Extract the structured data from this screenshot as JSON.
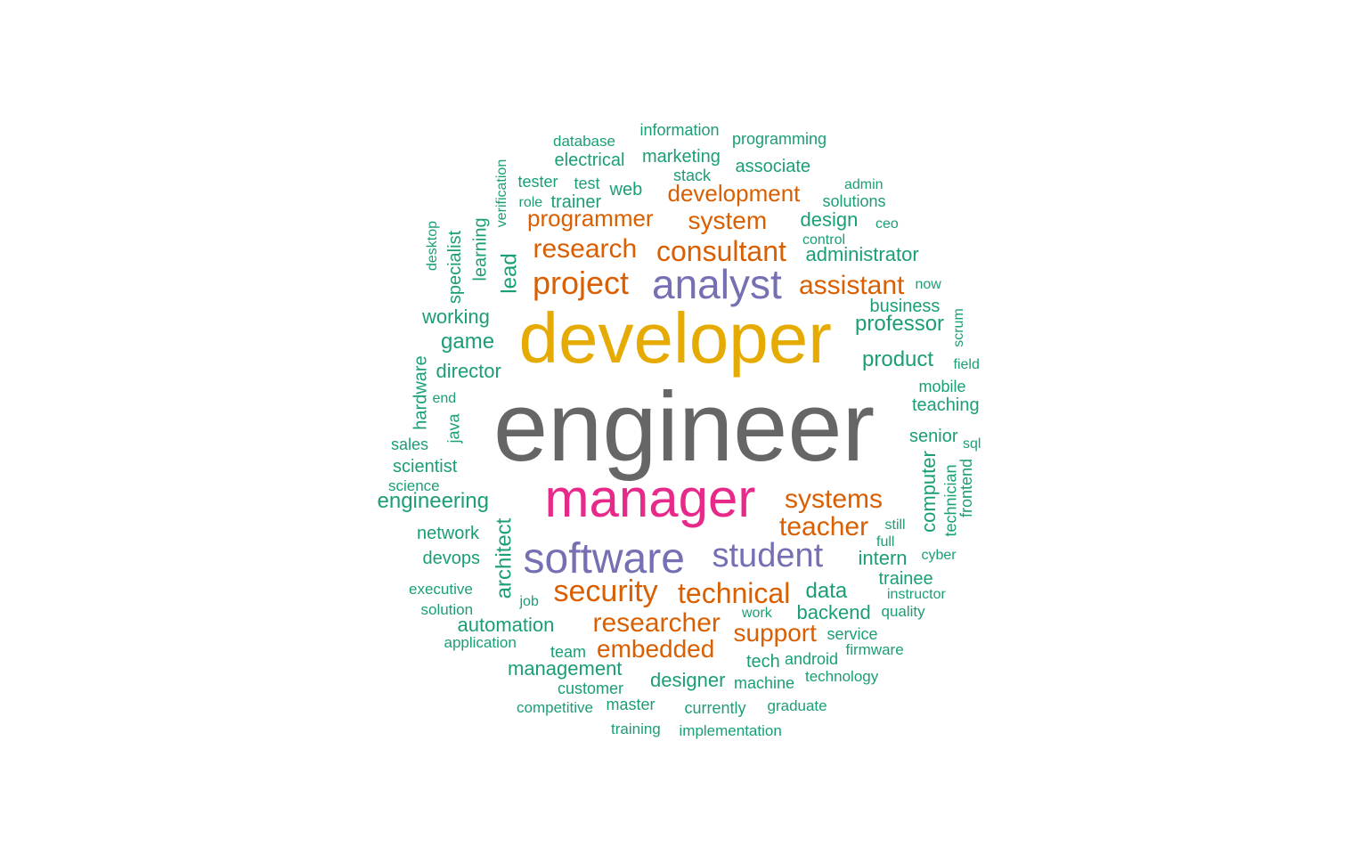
{
  "palette": {
    "c1": "#666666",
    "c2": "#e6ab02",
    "c3": "#e7298a",
    "c4": "#7570b3",
    "c5": "#d95f02",
    "c6": "#1b9e77"
  },
  "words": [
    {
      "text": "engineer",
      "color": "#666666",
      "rank": 1
    },
    {
      "text": "developer",
      "color": "#e6ab02",
      "rank": 2
    },
    {
      "text": "manager",
      "color": "#e7298a",
      "rank": 3
    },
    {
      "text": "software",
      "color": "#7570b3",
      "rank": 4
    },
    {
      "text": "analyst",
      "color": "#7570b3",
      "rank": 5
    },
    {
      "text": "student",
      "color": "#7570b3",
      "rank": 6
    },
    {
      "text": "project",
      "color": "#d95f02",
      "rank": 7
    },
    {
      "text": "security",
      "color": "#d95f02",
      "rank": 8
    },
    {
      "text": "technical",
      "color": "#d95f02",
      "rank": 9
    },
    {
      "text": "consultant",
      "color": "#d95f02",
      "rank": 10
    },
    {
      "text": "research",
      "color": "#d95f02",
      "rank": 11
    },
    {
      "text": "researcher",
      "color": "#d95f02",
      "rank": 12
    },
    {
      "text": "systems",
      "color": "#d95f02",
      "rank": 13
    },
    {
      "text": "teacher",
      "color": "#d95f02",
      "rank": 14
    },
    {
      "text": "assistant",
      "color": "#d95f02",
      "rank": 15
    },
    {
      "text": "embedded",
      "color": "#d95f02",
      "rank": 16
    },
    {
      "text": "support",
      "color": "#d95f02",
      "rank": 17
    },
    {
      "text": "system",
      "color": "#d95f02",
      "rank": 18
    },
    {
      "text": "programmer",
      "color": "#d95f02",
      "rank": 19
    },
    {
      "text": "development",
      "color": "#d95f02",
      "rank": 20
    },
    {
      "text": "engineering",
      "color": "#1b9e77",
      "rank": 21
    },
    {
      "text": "architect",
      "color": "#1b9e77",
      "rank": 22
    },
    {
      "text": "product",
      "color": "#1b9e77",
      "rank": 23
    },
    {
      "text": "professor",
      "color": "#1b9e77",
      "rank": 24
    },
    {
      "text": "lead",
      "color": "#1b9e77",
      "rank": 25
    },
    {
      "text": "data",
      "color": "#1b9e77",
      "rank": 26
    },
    {
      "text": "game",
      "color": "#1b9e77",
      "rank": 27
    },
    {
      "text": "intern",
      "color": "#1b9e77",
      "rank": 28
    },
    {
      "text": "backend",
      "color": "#1b9e77",
      "rank": 29
    },
    {
      "text": "automation",
      "color": "#1b9e77",
      "rank": 30
    },
    {
      "text": "management",
      "color": "#1b9e77",
      "rank": 31
    },
    {
      "text": "designer",
      "color": "#1b9e77",
      "rank": 32
    },
    {
      "text": "design",
      "color": "#1b9e77",
      "rank": 33
    },
    {
      "text": "administrator",
      "color": "#1b9e77",
      "rank": 34
    },
    {
      "text": "computer",
      "color": "#1b9e77",
      "rank": 35
    },
    {
      "text": "director",
      "color": "#1b9e77",
      "rank": 36
    },
    {
      "text": "working",
      "color": "#1b9e77",
      "rank": 37
    },
    {
      "text": "scientist",
      "color": "#1b9e77",
      "rank": 38
    },
    {
      "text": "network",
      "color": "#1b9e77",
      "rank": 39
    },
    {
      "text": "devops",
      "color": "#1b9e77",
      "rank": 40
    },
    {
      "text": "tech",
      "color": "#1b9e77",
      "rank": 41
    },
    {
      "text": "hardware",
      "color": "#1b9e77",
      "rank": 42
    },
    {
      "text": "web",
      "color": "#1b9e77",
      "rank": 43
    },
    {
      "text": "electrical",
      "color": "#1b9e77",
      "rank": 44
    },
    {
      "text": "trainer",
      "color": "#1b9e77",
      "rank": 45
    },
    {
      "text": "learning",
      "color": "#1b9e77",
      "rank": 46
    },
    {
      "text": "specialist",
      "color": "#1b9e77",
      "rank": 47
    },
    {
      "text": "senior",
      "color": "#1b9e77",
      "rank": 48
    },
    {
      "text": "teaching",
      "color": "#1b9e77",
      "rank": 49
    },
    {
      "text": "business",
      "color": "#1b9e77",
      "rank": 50
    },
    {
      "text": "trainee",
      "color": "#1b9e77",
      "rank": 51
    },
    {
      "text": "marketing",
      "color": "#1b9e77",
      "rank": 52
    },
    {
      "text": "associate",
      "color": "#1b9e77",
      "rank": 53
    },
    {
      "text": "tester",
      "color": "#1b9e77",
      "rank": 54
    },
    {
      "text": "solutions",
      "color": "#1b9e77",
      "rank": 55
    },
    {
      "text": "technician",
      "color": "#1b9e77",
      "rank": 56
    },
    {
      "text": "machine",
      "color": "#1b9e77",
      "rank": 57
    },
    {
      "text": "service",
      "color": "#1b9e77",
      "rank": 58
    },
    {
      "text": "android",
      "color": "#1b9e77",
      "rank": 59
    },
    {
      "text": "team",
      "color": "#1b9e77",
      "rank": 60
    },
    {
      "text": "master",
      "color": "#1b9e77",
      "rank": 61
    },
    {
      "text": "currently",
      "color": "#1b9e77",
      "rank": 62
    },
    {
      "text": "customer",
      "color": "#1b9e77",
      "rank": 63
    },
    {
      "text": "mobile",
      "color": "#1b9e77",
      "rank": 64
    },
    {
      "text": "sales",
      "color": "#1b9e77",
      "rank": 65
    },
    {
      "text": "java",
      "color": "#1b9e77",
      "rank": 66
    },
    {
      "text": "frontend",
      "color": "#1b9e77",
      "rank": 67
    },
    {
      "text": "information",
      "color": "#1b9e77",
      "rank": 68
    },
    {
      "text": "programming",
      "color": "#1b9e77",
      "rank": 69
    },
    {
      "text": "database",
      "color": "#1b9e77",
      "rank": 70
    },
    {
      "text": "test",
      "color": "#1b9e77",
      "rank": 71
    },
    {
      "text": "stack",
      "color": "#1b9e77",
      "rank": 72
    },
    {
      "text": "executive",
      "color": "#1b9e77",
      "rank": 73
    },
    {
      "text": "solution",
      "color": "#1b9e77",
      "rank": 74
    },
    {
      "text": "application",
      "color": "#1b9e77",
      "rank": 75
    },
    {
      "text": "science",
      "color": "#1b9e77",
      "rank": 76
    },
    {
      "text": "competitive",
      "color": "#1b9e77",
      "rank": 77
    },
    {
      "text": "training",
      "color": "#1b9e77",
      "rank": 78
    },
    {
      "text": "implementation",
      "color": "#1b9e77",
      "rank": 79
    },
    {
      "text": "graduate",
      "color": "#1b9e77",
      "rank": 80
    },
    {
      "text": "technology",
      "color": "#1b9e77",
      "rank": 81
    },
    {
      "text": "firmware",
      "color": "#1b9e77",
      "rank": 82
    },
    {
      "text": "quality",
      "color": "#1b9e77",
      "rank": 83
    },
    {
      "text": "instructor",
      "color": "#1b9e77",
      "rank": 84
    },
    {
      "text": "cyber",
      "color": "#1b9e77",
      "rank": 85
    },
    {
      "text": "full",
      "color": "#1b9e77",
      "rank": 86
    },
    {
      "text": "still",
      "color": "#1b9e77",
      "rank": 87
    },
    {
      "text": "sql",
      "color": "#1b9e77",
      "rank": 88
    },
    {
      "text": "field",
      "color": "#1b9e77",
      "rank": 89
    },
    {
      "text": "scrum",
      "color": "#1b9e77",
      "rank": 90
    },
    {
      "text": "now",
      "color": "#1b9e77",
      "rank": 91
    },
    {
      "text": "control",
      "color": "#1b9e77",
      "rank": 92
    },
    {
      "text": "ceo",
      "color": "#1b9e77",
      "rank": 93
    },
    {
      "text": "admin",
      "color": "#1b9e77",
      "rank": 94
    },
    {
      "text": "role",
      "color": "#1b9e77",
      "rank": 95
    },
    {
      "text": "verification",
      "color": "#1b9e77",
      "rank": 96
    },
    {
      "text": "desktop",
      "color": "#1b9e77",
      "rank": 97
    },
    {
      "text": "end",
      "color": "#1b9e77",
      "rank": 98
    },
    {
      "text": "job",
      "color": "#1b9e77",
      "rank": 99
    },
    {
      "text": "work",
      "color": "#1b9e77",
      "rank": 100
    }
  ]
}
